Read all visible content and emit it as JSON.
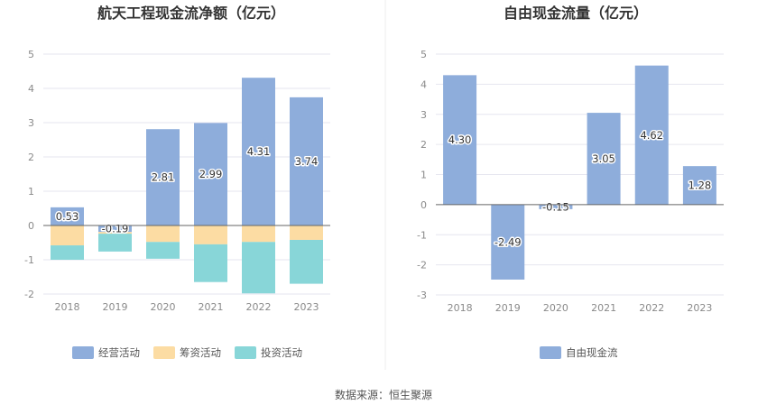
{
  "chart_data": [
    {
      "type": "bar",
      "stacked": true,
      "title": "航天工程现金流净额（亿元）",
      "categories": [
        "2018",
        "2019",
        "2020",
        "2021",
        "2022",
        "2023"
      ],
      "ylim": [
        -2,
        5
      ],
      "yticks": [
        5,
        4,
        3,
        2,
        1,
        0,
        -1,
        -2
      ],
      "grid": true,
      "legend_position": "bottom",
      "series": [
        {
          "name": "经营活动",
          "color": "#8eaddb",
          "values": [
            0.53,
            -0.19,
            2.81,
            2.99,
            4.31,
            3.74
          ],
          "labels": [
            "0.53",
            "-0.19",
            "2.81",
            "2.99",
            "4.31",
            "3.74"
          ]
        },
        {
          "name": "筹资活动",
          "color": "#fcdca3",
          "values": [
            -0.58,
            -0.05,
            -0.48,
            -0.55,
            -0.48,
            -0.42
          ]
        },
        {
          "name": "投资活动",
          "color": "#88d6d8",
          "values": [
            -0.42,
            -0.52,
            -0.49,
            -1.1,
            -1.5,
            -1.28
          ]
        }
      ]
    },
    {
      "type": "bar",
      "title": "自由现金流量（亿元）",
      "categories": [
        "2018",
        "2019",
        "2020",
        "2021",
        "2022",
        "2023"
      ],
      "ylim": [
        -3,
        5
      ],
      "yticks": [
        5,
        4,
        3,
        2,
        1,
        0,
        -1,
        -2,
        -3
      ],
      "grid": true,
      "legend_position": "bottom",
      "series": [
        {
          "name": "自由现金流",
          "color": "#8eaddb",
          "values": [
            4.3,
            -2.49,
            -0.15,
            3.05,
            4.62,
            1.28
          ],
          "labels": [
            "4.30",
            "-2.49",
            "-0.15",
            "3.05",
            "4.62",
            "1.28"
          ]
        }
      ]
    }
  ],
  "source_text": "数据来源：恒生聚源",
  "colors": {
    "grid": "#e6e6ef",
    "axis": "#666666",
    "divider": "#eeeeee"
  }
}
